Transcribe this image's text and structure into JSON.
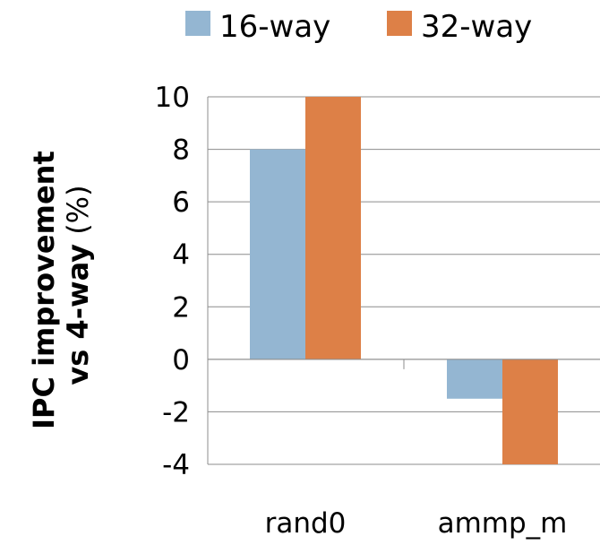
{
  "chart_data": {
    "type": "bar",
    "categories": [
      "rand0",
      "ammp_m"
    ],
    "series": [
      {
        "name": "16-way",
        "values": [
          8,
          -1.5
        ]
      },
      {
        "name": "32-way",
        "values": [
          10,
          -4
        ]
      }
    ],
    "ylabel_line1": "IPC improvement",
    "ylabel_line2_bold": "vs 4-way",
    "ylabel_line2_normal": " (%)",
    "ylim": [
      -4,
      10
    ],
    "yticks": [
      "10",
      "8",
      "6",
      "4",
      "2",
      "0",
      "-2",
      "-4"
    ],
    "grid": true,
    "legend_position": "top",
    "colors": {
      "16-way": "#94b6d2",
      "32-way": "#dd8047"
    }
  }
}
